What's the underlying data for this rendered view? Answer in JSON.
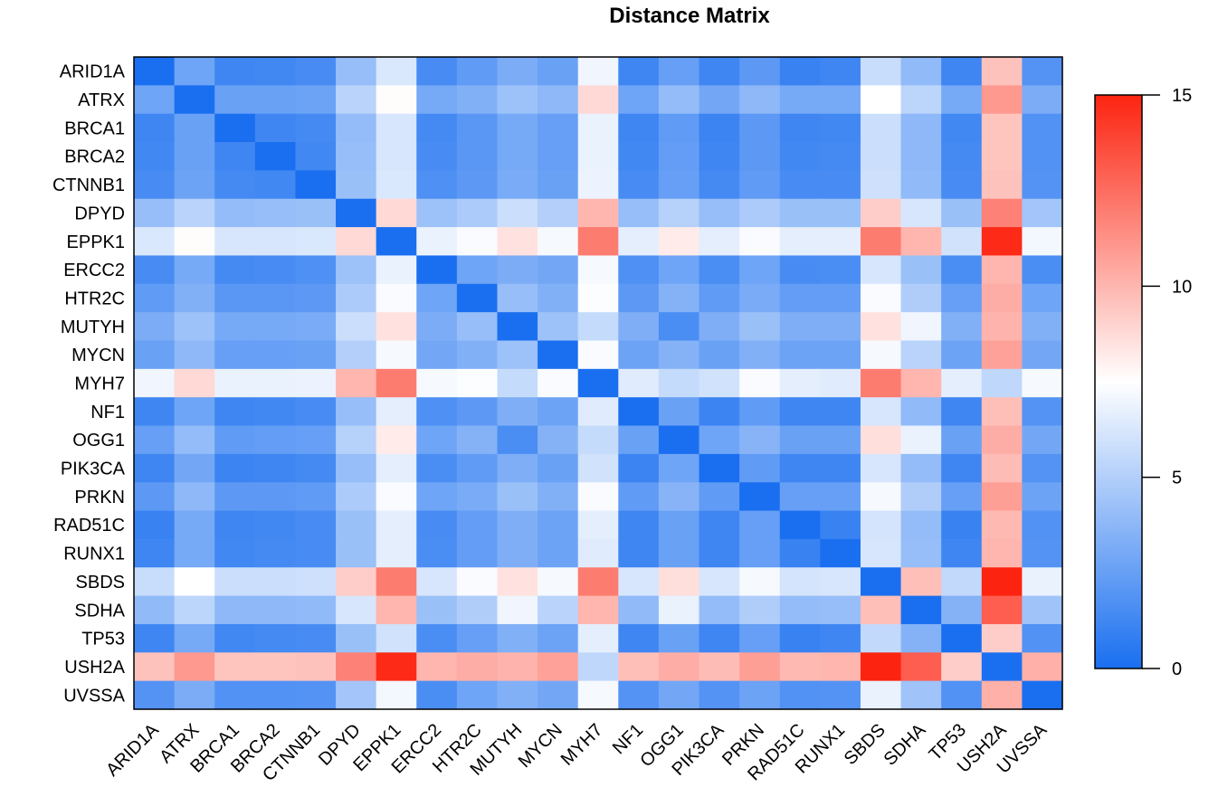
{
  "chart_data": {
    "type": "heatmap",
    "title": "Distance Matrix",
    "xlabel": "",
    "ylabel": "",
    "rows": [
      "ARID1A",
      "ATRX",
      "BRCA1",
      "BRCA2",
      "CTNNB1",
      "DPYD",
      "EPPK1",
      "ERCC2",
      "HTR2C",
      "MUTYH",
      "MYCN",
      "MYH7",
      "NF1",
      "OGG1",
      "PIK3CA",
      "PRKN",
      "RAD51C",
      "RUNX1",
      "SBDS",
      "SDHA",
      "TP53",
      "USH2A",
      "UVSSA"
    ],
    "columns": [
      "ARID1A",
      "ATRX",
      "BRCA1",
      "BRCA2",
      "CTNNB1",
      "DPYD",
      "EPPK1",
      "ERCC2",
      "HTR2C",
      "MUTYH",
      "MYCN",
      "MYH7",
      "NF1",
      "OGG1",
      "PIK3CA",
      "PRKN",
      "RAD51C",
      "RUNX1",
      "SBDS",
      "SDHA",
      "TP53",
      "USH2A",
      "UVSSA"
    ],
    "values": [
      [
        0,
        2.8,
        1.2,
        1.3,
        1.5,
        4.1,
        6.3,
        1.5,
        2.3,
        3.2,
        2.6,
        7,
        1.2,
        2.5,
        1.2,
        2.2,
        1,
        1.2,
        5.7,
        3.9,
        1.2,
        9.6,
        1.9
      ],
      [
        2.8,
        0,
        2.6,
        2.6,
        2.7,
        5.2,
        7.6,
        3,
        3.4,
        4.3,
        3.8,
        8.8,
        2.8,
        4,
        2.9,
        3.8,
        3,
        3,
        7.5,
        5.3,
        3,
        11,
        3.2
      ],
      [
        1.2,
        2.6,
        0,
        1.2,
        1.4,
        4,
        6.2,
        1.4,
        2.1,
        3,
        2.5,
        6.8,
        1.2,
        2.3,
        1.1,
        2.2,
        1.2,
        1.3,
        5.8,
        3.8,
        1.3,
        9.5,
        1.8
      ],
      [
        1.3,
        2.6,
        1.2,
        0,
        1.3,
        4.1,
        6.2,
        1.5,
        2.1,
        3,
        2.5,
        6.8,
        1.3,
        2.4,
        1.2,
        2.2,
        1.3,
        1.4,
        5.8,
        3.8,
        1.4,
        9.5,
        1.8
      ],
      [
        1.5,
        2.7,
        1.4,
        1.3,
        0,
        4.2,
        6.3,
        1.7,
        2.2,
        3.1,
        2.6,
        6.9,
        1.5,
        2.5,
        1.4,
        2.3,
        1.5,
        1.5,
        5.9,
        3.9,
        1.5,
        9.6,
        1.9
      ],
      [
        4.1,
        5.2,
        4,
        4.1,
        4.2,
        0,
        8.8,
        4.3,
        4.8,
        5.8,
        5,
        10,
        4.1,
        5.1,
        4.1,
        4.8,
        4.2,
        4.2,
        9.2,
        6.2,
        4.2,
        11.8,
        4.5
      ],
      [
        6.3,
        7.6,
        6.2,
        6.2,
        6.3,
        8.8,
        0,
        6.8,
        7.3,
        8.5,
        7.2,
        12,
        6.6,
        8.2,
        6.6,
        7.3,
        6.6,
        6.6,
        12,
        10,
        6,
        14.8,
        7.1
      ],
      [
        1.5,
        3,
        1.4,
        1.5,
        1.7,
        4.3,
        6.8,
        0,
        2.8,
        3.2,
        2.9,
        7.2,
        1.7,
        2.8,
        1.6,
        2.8,
        1.5,
        1.6,
        6.2,
        4.2,
        1.6,
        10,
        1.6
      ],
      [
        2.3,
        3.4,
        2.1,
        2.1,
        2.2,
        4.8,
        7.3,
        2.8,
        0,
        4.1,
        3.4,
        7.4,
        2.2,
        3.5,
        2.3,
        3.1,
        2.4,
        2.4,
        7.3,
        4.9,
        2.5,
        10.3,
        2.8
      ],
      [
        3.2,
        4.3,
        3,
        3,
        3.1,
        5.8,
        8.5,
        3.2,
        4.1,
        0,
        4.3,
        5.6,
        3.3,
        1.6,
        3.3,
        4.2,
        3.3,
        3.3,
        8.5,
        7,
        3.4,
        10.1,
        3.4
      ],
      [
        2.6,
        3.8,
        2.5,
        2.5,
        2.6,
        5,
        7.2,
        2.9,
        3.4,
        4.3,
        0,
        7.3,
        2.7,
        3.5,
        2.6,
        3.4,
        2.7,
        2.7,
        7.2,
        5.2,
        2.7,
        10.7,
        2.9
      ],
      [
        7,
        8.8,
        6.8,
        6.8,
        6.9,
        10,
        12,
        7.2,
        7.4,
        5.6,
        7.3,
        0,
        6.5,
        5.6,
        6,
        7.3,
        6.6,
        6.5,
        12,
        10,
        6.6,
        5.4,
        7.2
      ],
      [
        1.2,
        2.8,
        1.2,
        1.3,
        1.5,
        4.1,
        6.6,
        1.7,
        2.2,
        3.3,
        2.7,
        6.5,
        0,
        2.6,
        1.1,
        2.3,
        1.2,
        1.2,
        6.2,
        3.9,
        1.2,
        9.7,
        1.9
      ],
      [
        2.5,
        4,
        2.3,
        2.4,
        2.5,
        5.1,
        8.2,
        2.8,
        3.5,
        1.6,
        3.5,
        5.6,
        2.6,
        0,
        2.8,
        3.6,
        2.6,
        2.6,
        8.6,
        6.8,
        2.6,
        10.3,
        2.9
      ],
      [
        1.2,
        2.9,
        1.1,
        1.2,
        1.4,
        4.1,
        6.6,
        1.6,
        2.3,
        3.3,
        2.6,
        6,
        1.1,
        2.8,
        0,
        2.3,
        1.2,
        1.2,
        6.2,
        4,
        1.2,
        9.8,
        1.9
      ],
      [
        2.2,
        3.8,
        2.2,
        2.2,
        2.3,
        4.8,
        7.3,
        2.8,
        3.1,
        4.2,
        3.4,
        7.3,
        2.3,
        3.6,
        2.3,
        0,
        2.5,
        2.5,
        7.2,
        4.9,
        2.5,
        10.8,
        2.7
      ],
      [
        1,
        3,
        1.2,
        1.3,
        1.5,
        4.2,
        6.6,
        1.5,
        2.4,
        3.3,
        2.7,
        6.6,
        1.2,
        2.6,
        1.2,
        2.5,
        0,
        1,
        6.1,
        4,
        1,
        9.9,
        1.8
      ],
      [
        1.2,
        3,
        1.3,
        1.4,
        1.5,
        4.2,
        6.6,
        1.6,
        2.4,
        3.3,
        2.7,
        6.5,
        1.2,
        2.6,
        1.2,
        2.5,
        1,
        0,
        6.2,
        4.1,
        1.2,
        10,
        1.9
      ],
      [
        5.7,
        7.5,
        5.8,
        5.8,
        5.9,
        9.2,
        12,
        6.2,
        7.3,
        8.5,
        7.2,
        12,
        6.2,
        8.6,
        6.2,
        7.2,
        6.1,
        6.2,
        0,
        9.7,
        5.5,
        15,
        6.8
      ],
      [
        3.9,
        5.3,
        3.8,
        3.8,
        3.9,
        6.2,
        10,
        4.2,
        4.9,
        7,
        5.2,
        10,
        3.9,
        6.8,
        4,
        4.9,
        4,
        4.1,
        9.7,
        0,
        3.5,
        13,
        4.4
      ],
      [
        1.2,
        3,
        1.3,
        1.4,
        1.5,
        4.2,
        6,
        1.6,
        2.5,
        3.4,
        2.7,
        6.6,
        1.2,
        2.6,
        1.2,
        2.5,
        1,
        1.2,
        5.5,
        3.5,
        0,
        9.2,
        1.8
      ],
      [
        9.6,
        11,
        9.5,
        9.5,
        9.6,
        11.8,
        14.8,
        10,
        10.3,
        10.1,
        10.7,
        5.4,
        9.7,
        10.3,
        9.8,
        10.8,
        9.9,
        10,
        15,
        13,
        9.2,
        0,
        10.2
      ],
      [
        1.9,
        3.2,
        1.8,
        1.8,
        1.9,
        4.5,
        7.1,
        1.6,
        2.8,
        3.4,
        2.9,
        7.2,
        1.9,
        2.9,
        1.9,
        2.7,
        1.8,
        1.9,
        6.8,
        4.4,
        1.8,
        10.2,
        0
      ]
    ],
    "colorbar": {
      "min": 0,
      "max": 15,
      "ticks": [
        0,
        5,
        10,
        15
      ],
      "colors": [
        "#1a6ff0",
        "#ffffff",
        "#fc2410"
      ]
    },
    "grid": false
  }
}
